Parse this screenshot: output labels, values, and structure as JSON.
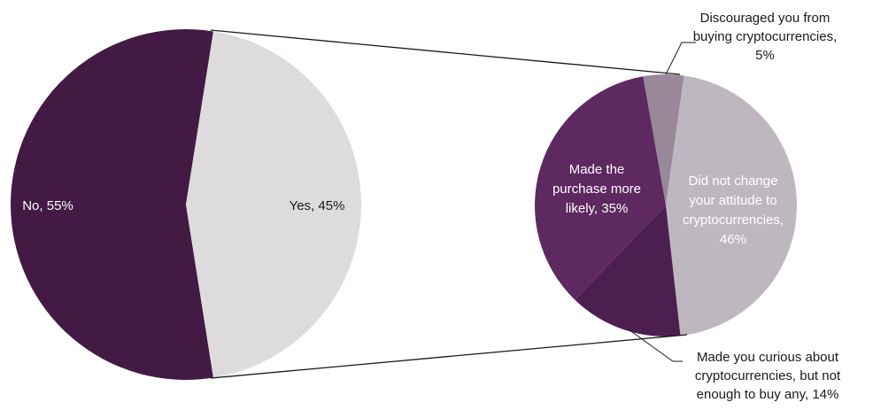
{
  "chart_data": [
    {
      "type": "pie",
      "slices": [
        {
          "label": "No",
          "value": 55,
          "text": "No, 55%",
          "color": "#431a44"
        },
        {
          "label": "Yes",
          "value": 45,
          "text": "Yes, 45%",
          "color": "#dedbde"
        }
      ]
    },
    {
      "type": "pie",
      "slices": [
        {
          "label": "Discouraged you from buying cryptocurrencies",
          "value": 5,
          "lines": [
            "Discouraged you from",
            "buying cryptocurrencies,",
            "5%"
          ],
          "color": "#98889a"
        },
        {
          "label": "Did not change your attitude to cryptocurrencies",
          "value": 46,
          "lines": [
            "Did not change",
            "your attitude to",
            "cryptocurrencies,",
            "46%"
          ],
          "color": "#bfb7c0"
        },
        {
          "label": "Made you curious about cryptocurrencies, but not enough to buy any",
          "value": 14,
          "lines": [
            "Made you curious about",
            "cryptocurrencies, but not",
            "enough to buy any, 14%"
          ],
          "color": "#4d1f50"
        },
        {
          "label": "Made the purchase more likely",
          "value": 35,
          "lines": [
            "Made the",
            "purchase more",
            "likely, 35%"
          ],
          "color": "#5e2860"
        }
      ]
    }
  ]
}
